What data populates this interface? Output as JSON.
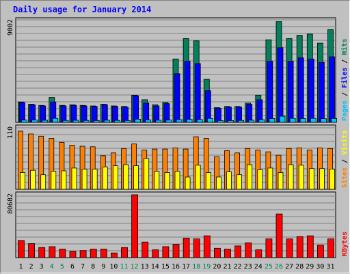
{
  "title": "Daily usage for January 2014",
  "colors": {
    "hits": "#00805c",
    "files": "#0000ff",
    "pages": "#00c0ff",
    "visits": "#ffff00",
    "sites": "#ff8000",
    "kbytes": "#ff0000",
    "weekend_label": "#00805c",
    "background": "#c0c0c0",
    "plot_background": "#c0c0c0",
    "grid": "#808080"
  },
  "chart_data": [
    {
      "type": "bar",
      "id": "hits-files-pages",
      "ymax_label": "9002",
      "ylim": [
        0,
        9002
      ],
      "legend": [
        {
          "name": "Pages",
          "color": "#00c0ff"
        },
        {
          "name": "Files",
          "color": "#0000ff"
        },
        {
          "name": "Hits",
          "color": "#00805c"
        }
      ],
      "legend_separator": " / ",
      "categories": [
        "1",
        "2",
        "3",
        "4",
        "5",
        "6",
        "7",
        "8",
        "9",
        "10",
        "11",
        "12",
        "13",
        "14",
        "15",
        "16",
        "17",
        "18",
        "19",
        "20",
        "21",
        "22",
        "23",
        "24",
        "25",
        "26",
        "27",
        "28",
        "29",
        "30",
        "31"
      ],
      "weekend_days": [
        "4",
        "5",
        "11",
        "12",
        "18",
        "19",
        "25",
        "26"
      ],
      "series": [
        {
          "name": "Hits",
          "values": [
            1800,
            1600,
            1500,
            2200,
            1500,
            1550,
            1500,
            1450,
            1600,
            1450,
            1400,
            2400,
            2000,
            1550,
            1750,
            5600,
            7400,
            7200,
            3800,
            1300,
            1400,
            1400,
            1700,
            2400,
            7300,
            8900,
            7400,
            7700,
            7800,
            7000,
            8200
          ]
        },
        {
          "name": "Files",
          "values": [
            1750,
            1550,
            1450,
            1800,
            1450,
            1500,
            1450,
            1400,
            1550,
            1400,
            1350,
            2350,
            1700,
            1450,
            1650,
            4300,
            5400,
            5200,
            2800,
            1250,
            1350,
            1350,
            1600,
            2000,
            5400,
            6600,
            5400,
            5700,
            5600,
            5300,
            5800
          ]
        },
        {
          "name": "Pages",
          "values": [
            200,
            200,
            180,
            350,
            170,
            180,
            170,
            160,
            190,
            170,
            160,
            280,
            220,
            190,
            200,
            240,
            260,
            250,
            350,
            160,
            160,
            170,
            190,
            230,
            330,
            540,
            350,
            330,
            350,
            320,
            340
          ]
        }
      ]
    },
    {
      "type": "bar",
      "id": "visits-sites",
      "ymax_label": "110",
      "ylim": [
        0,
        110
      ],
      "legend": [
        {
          "name": "Sites",
          "color": "#ff8000"
        },
        {
          "name": "Visits",
          "color": "#ffff00"
        }
      ],
      "legend_separator": " / ",
      "categories": [
        "1",
        "2",
        "3",
        "4",
        "5",
        "6",
        "7",
        "8",
        "9",
        "10",
        "11",
        "12",
        "13",
        "14",
        "15",
        "16",
        "17",
        "18",
        "19",
        "20",
        "21",
        "22",
        "23",
        "24",
        "25",
        "26",
        "27",
        "28",
        "29",
        "30",
        "31"
      ],
      "series": [
        {
          "name": "Sites",
          "values": [
            104,
            99,
            95,
            91,
            84,
            79,
            77,
            76,
            60,
            65,
            73,
            81,
            70,
            72,
            72,
            74,
            72,
            94,
            91,
            58,
            69,
            65,
            73,
            70,
            67,
            61,
            73,
            74,
            70,
            74,
            73
          ]
        },
        {
          "name": "Visits",
          "values": [
            30,
            34,
            26,
            32,
            33,
            38,
            36,
            36,
            40,
            42,
            44,
            42,
            55,
            32,
            30,
            32,
            22,
            43,
            30,
            22,
            31,
            26,
            44,
            35,
            38,
            30,
            44,
            43,
            37,
            37,
            36
          ]
        }
      ]
    },
    {
      "type": "bar",
      "id": "kbytes",
      "ymax_label": "80682",
      "ylim": [
        0,
        80682
      ],
      "legend": [
        {
          "name": "KBytes",
          "color": "#ff0000"
        }
      ],
      "categories": [
        "1",
        "2",
        "3",
        "4",
        "5",
        "6",
        "7",
        "8",
        "9",
        "10",
        "11",
        "12",
        "13",
        "14",
        "15",
        "16",
        "17",
        "18",
        "19",
        "20",
        "21",
        "22",
        "23",
        "24",
        "25",
        "26",
        "27",
        "28",
        "29",
        "30",
        "31"
      ],
      "series": [
        {
          "name": "KBytes",
          "values": [
            22000,
            18000,
            13000,
            14000,
            11000,
            8000,
            9000,
            11000,
            11000,
            6000,
            13000,
            80682,
            20000,
            10000,
            14000,
            17000,
            25000,
            24000,
            28000,
            12000,
            11000,
            15000,
            19000,
            10000,
            24000,
            56000,
            24000,
            27000,
            28000,
            16000,
            24000
          ]
        }
      ]
    }
  ]
}
